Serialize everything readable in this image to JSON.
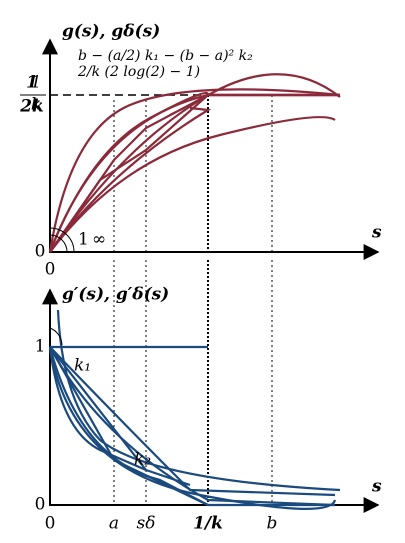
{
  "top": {
    "y_label": "g(s), gδ(s)",
    "y_ticks": [
      {
        "num": "1",
        "den": "k"
      },
      {
        "num": "1",
        "den": "2k"
      }
    ],
    "annotations": [
      "2/k (2 log(2) − 1)",
      "b − (a/2) k₁ − (b − a)² k₂"
    ],
    "origin_labels": [
      "1",
      "∞"
    ],
    "zero_y": "0",
    "zero_x": "0",
    "x_label": "s"
  },
  "bottom": {
    "y_label": "g′(s), g′δ(s)",
    "one": "1",
    "k1": "k₁",
    "k2": "k₂",
    "zero_y": "0",
    "x_label": "s",
    "x_ticks": [
      "0",
      "a",
      "sδ",
      "1/k",
      "b"
    ]
  }
}
